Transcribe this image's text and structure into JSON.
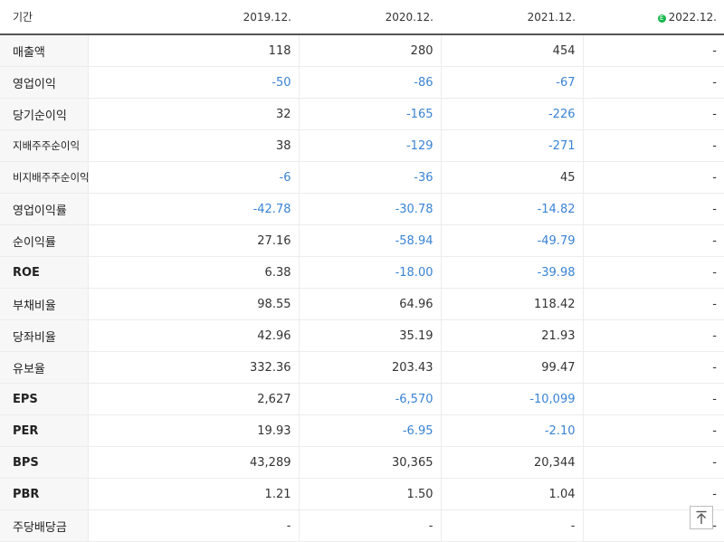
{
  "table": {
    "header": {
      "label": "기간",
      "periods": [
        "2019.12.",
        "2020.12.",
        "2021.12.",
        "2022.12."
      ],
      "estimate_badge": "E"
    },
    "rows": [
      {
        "label": "매출액",
        "values": [
          "118",
          "280",
          "454",
          "-"
        ]
      },
      {
        "label": "영업이익",
        "values": [
          "-50",
          "-86",
          "-67",
          "-"
        ]
      },
      {
        "label": "당기순이익",
        "values": [
          "32",
          "-165",
          "-226",
          "-"
        ]
      },
      {
        "label": "지배주주순이익",
        "values": [
          "38",
          "-129",
          "-271",
          "-"
        ]
      },
      {
        "label": "비지배주주순이익",
        "values": [
          "-6",
          "-36",
          "45",
          "-"
        ]
      },
      {
        "label": "영업이익률",
        "values": [
          "-42.78",
          "-30.78",
          "-14.82",
          "-"
        ]
      },
      {
        "label": "순이익률",
        "values": [
          "27.16",
          "-58.94",
          "-49.79",
          "-"
        ]
      },
      {
        "label": "ROE",
        "values": [
          "6.38",
          "-18.00",
          "-39.98",
          "-"
        ]
      },
      {
        "label": "부채비율",
        "values": [
          "98.55",
          "64.96",
          "118.42",
          "-"
        ]
      },
      {
        "label": "당좌비율",
        "values": [
          "42.96",
          "35.19",
          "21.93",
          "-"
        ]
      },
      {
        "label": "유보율",
        "values": [
          "332.36",
          "203.43",
          "99.47",
          "-"
        ]
      },
      {
        "label": "EPS",
        "values": [
          "2,627",
          "-6,570",
          "-10,099",
          "-"
        ]
      },
      {
        "label": "PER",
        "values": [
          "19.93",
          "-6.95",
          "-2.10",
          "-"
        ]
      },
      {
        "label": "BPS",
        "values": [
          "43,289",
          "30,365",
          "20,344",
          "-"
        ]
      },
      {
        "label": "PBR",
        "values": [
          "1.21",
          "1.50",
          "1.04",
          "-"
        ]
      },
      {
        "label": "주당배당금",
        "values": [
          "-",
          "-",
          "-",
          "-"
        ]
      }
    ]
  },
  "colors": {
    "negative": "#3a83d4",
    "estimate_badge": "#15b84a",
    "label_background": "#f7f7f7"
  },
  "scroll_top_button": {
    "icon": "arrow-up-to-top-icon"
  }
}
